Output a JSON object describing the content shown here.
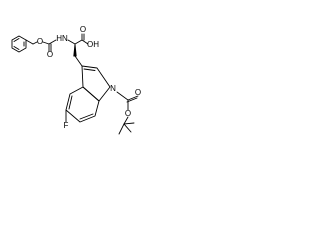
{
  "molecule": {
    "atoms": [
      {
        "label": "O"
      },
      {
        "label": "O"
      },
      {
        "label": "HN"
      },
      {
        "label": "O"
      },
      {
        "label": "OH"
      },
      {
        "label": "N"
      },
      {
        "label": "O"
      },
      {
        "label": "O"
      },
      {
        "label": "F"
      }
    ]
  }
}
